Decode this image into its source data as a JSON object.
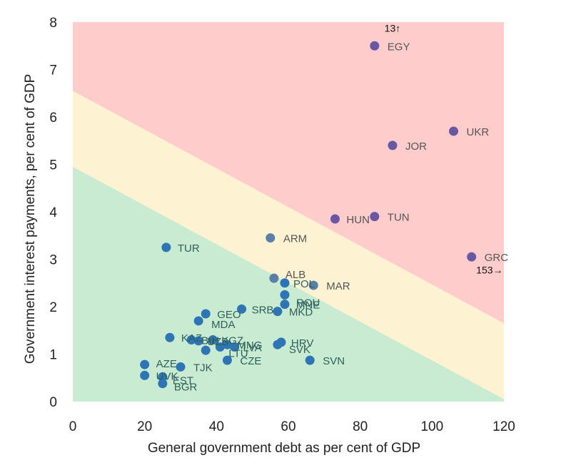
{
  "chart_data": {
    "type": "scatter",
    "xlabel": "General government debt as per cent of GDP",
    "ylabel": "Government interest payments, per cent of GDP",
    "xlim": [
      0,
      120
    ],
    "ylim": [
      0,
      8
    ],
    "xticks": [
      "0",
      "20",
      "40",
      "60",
      "80",
      "100",
      "120"
    ],
    "yticks": [
      "0",
      "1",
      "2",
      "3",
      "4",
      "5",
      "6",
      "7",
      "8"
    ],
    "grid": false,
    "zones": [
      {
        "name": "green",
        "color": "#c8ebd2",
        "boundary": [
          [
            0,
            4.95
          ],
          [
            120,
            0.05
          ]
        ]
      },
      {
        "name": "yellow",
        "color": "#fdf3d3",
        "boundary": [
          [
            0,
            6.55
          ],
          [
            120,
            1.65
          ]
        ]
      },
      {
        "name": "red",
        "color": "#ffcccc"
      }
    ],
    "colors": {
      "low": "#2e75b6",
      "mid": "#5b7fa6",
      "high": "#6a57a3"
    },
    "points": [
      {
        "label": "EGY",
        "x": 84,
        "y": 7.5,
        "tier": "high"
      },
      {
        "label": "UKR",
        "x": 106,
        "y": 5.7,
        "tier": "high"
      },
      {
        "label": "JOR",
        "x": 89,
        "y": 5.4,
        "tier": "high"
      },
      {
        "label": "HUN",
        "x": 73,
        "y": 3.85,
        "tier": "high"
      },
      {
        "label": "TUN",
        "x": 84,
        "y": 3.9,
        "tier": "high"
      },
      {
        "label": "GRC",
        "x": 111,
        "y": 3.05,
        "tier": "high"
      },
      {
        "label": "ARM",
        "x": 55,
        "y": 3.45,
        "tier": "mid"
      },
      {
        "label": "ALB",
        "x": 56,
        "y": 2.6,
        "tier": "mid"
      },
      {
        "label": "MAR",
        "x": 67,
        "y": 2.45,
        "tier": "mid"
      },
      {
        "label": "POL",
        "x": 59,
        "y": 2.5,
        "tier": "low"
      },
      {
        "label": "ROU",
        "x": 59,
        "y": 2.25,
        "tier": "low"
      },
      {
        "label": "MNE",
        "x": 59,
        "y": 2.05,
        "tier": "low"
      },
      {
        "label": "SRB",
        "x": 47,
        "y": 1.95,
        "tier": "low"
      },
      {
        "label": "MKD",
        "x": 57,
        "y": 1.9,
        "tier": "low"
      },
      {
        "label": "TUR",
        "x": 26,
        "y": 3.25,
        "tier": "low"
      },
      {
        "label": "GEO",
        "x": 37,
        "y": 1.85,
        "tier": "low"
      },
      {
        "label": "MDA",
        "x": 35,
        "y": 1.7,
        "tier": "low"
      },
      {
        "label": "KAZ",
        "x": 27,
        "y": 1.35,
        "tier": "low"
      },
      {
        "label": "BIH",
        "x": 33,
        "y": 1.3,
        "tier": "low"
      },
      {
        "label": "UZB",
        "x": 35,
        "y": 1.28,
        "tier": "low"
      },
      {
        "label": "KGZ",
        "x": 39,
        "y": 1.3,
        "tier": "low"
      },
      {
        "label": "LTU",
        "x": 41,
        "y": 1.15,
        "tier": "low"
      },
      {
        "label": "MNG",
        "x": 43,
        "y": 1.2,
        "tier": "low"
      },
      {
        "label": "LVA",
        "x": 45,
        "y": 1.15,
        "tier": "low"
      },
      {
        "label": "HRV",
        "x": 58,
        "y": 1.25,
        "tier": "low"
      },
      {
        "label": "SVK",
        "x": 57,
        "y": 1.2,
        "tier": "low"
      },
      {
        "label": "CZE",
        "x": 43,
        "y": 0.87,
        "tier": "low"
      },
      {
        "label": "SVN",
        "x": 66,
        "y": 0.87,
        "tier": "low"
      },
      {
        "label": "AZE",
        "x": 20,
        "y": 0.78,
        "tier": "low"
      },
      {
        "label": "TJK",
        "x": 30,
        "y": 0.73,
        "tier": "low"
      },
      {
        "label": "UVK",
        "x": 20,
        "y": 0.55,
        "tier": "low"
      },
      {
        "label": "EST",
        "x": 25,
        "y": 0.52,
        "tier": "low"
      },
      {
        "label": "BGR",
        "x": 25,
        "y": 0.38,
        "tier": "low"
      },
      {
        "label": "",
        "x": 37,
        "y": 1.08,
        "tier": "low"
      }
    ],
    "annotations": [
      {
        "text": "13↑",
        "x": 89,
        "y": 7.8
      },
      {
        "text": "153→",
        "x": 116,
        "y": 2.7
      }
    ]
  }
}
